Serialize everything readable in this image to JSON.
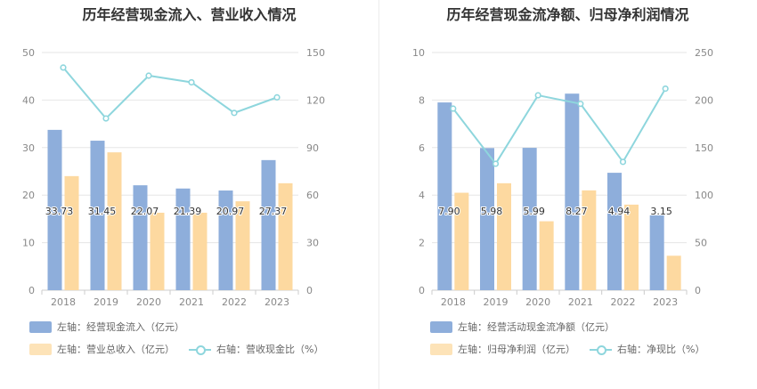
{
  "chart_data": [
    {
      "type": "bar",
      "title": "历年经营现金流入、营业收入情况",
      "categories": [
        "2018",
        "2019",
        "2020",
        "2021",
        "2022",
        "2023"
      ],
      "y_left": {
        "ylim": [
          0,
          50
        ],
        "ticks": [
          "0",
          "10",
          "20",
          "30",
          "40",
          "50"
        ]
      },
      "y_right": {
        "ylim": [
          0,
          150
        ],
        "ticks": [
          "0",
          "30",
          "60",
          "90",
          "120",
          "150"
        ]
      },
      "series": [
        {
          "name": "左轴：经营现金流入（亿元）",
          "type": "bar",
          "axis": "left",
          "color": "#8eaedb",
          "values": [
            33.73,
            31.45,
            22.07,
            21.39,
            20.97,
            27.37
          ],
          "labels": [
            "33.73",
            "31.45",
            "22.07",
            "21.39",
            "20.97",
            "27.37"
          ]
        },
        {
          "name": "左轴：营业总收入（亿元）",
          "type": "bar",
          "axis": "left",
          "color": "#fdd9a0",
          "values": [
            24.0,
            29.0,
            16.3,
            16.3,
            18.7,
            22.5
          ]
        },
        {
          "name": "右轴：营收现金比（%）",
          "type": "line",
          "axis": "right",
          "color": "#8ed6dd",
          "values": [
            140.5,
            108.4,
            135.4,
            131.2,
            111.9,
            121.7
          ]
        }
      ],
      "grid": true,
      "legend": "bottom"
    },
    {
      "type": "bar",
      "title": "历年经营现金流净额、归母净利润情况",
      "categories": [
        "2018",
        "2019",
        "2020",
        "2021",
        "2022",
        "2023"
      ],
      "y_left": {
        "ylim": [
          0,
          10
        ],
        "ticks": [
          "0",
          "2",
          "4",
          "6",
          "8",
          "10"
        ]
      },
      "y_right": {
        "ylim": [
          0,
          250
        ],
        "ticks": [
          "0",
          "50",
          "100",
          "150",
          "200",
          "250"
        ]
      },
      "series": [
        {
          "name": "左轴：经营活动现金流净额（亿元）",
          "type": "bar",
          "axis": "left",
          "color": "#8eaedb",
          "values": [
            7.9,
            5.98,
            5.99,
            8.27,
            4.94,
            3.15
          ],
          "labels": [
            "7.90",
            "5.98",
            "5.99",
            "8.27",
            "4.94",
            "3.15"
          ]
        },
        {
          "name": "左轴：归母净利润（亿元）",
          "type": "bar",
          "axis": "left",
          "color": "#fdd9a0",
          "values": [
            4.1,
            4.5,
            2.9,
            4.2,
            3.6,
            1.45
          ]
        },
        {
          "name": "右轴：净现比（%）",
          "type": "line",
          "axis": "right",
          "color": "#8ed6dd",
          "values": [
            191,
            133,
            205,
            196,
            135,
            212
          ]
        }
      ],
      "grid": true,
      "legend": "bottom"
    }
  ]
}
